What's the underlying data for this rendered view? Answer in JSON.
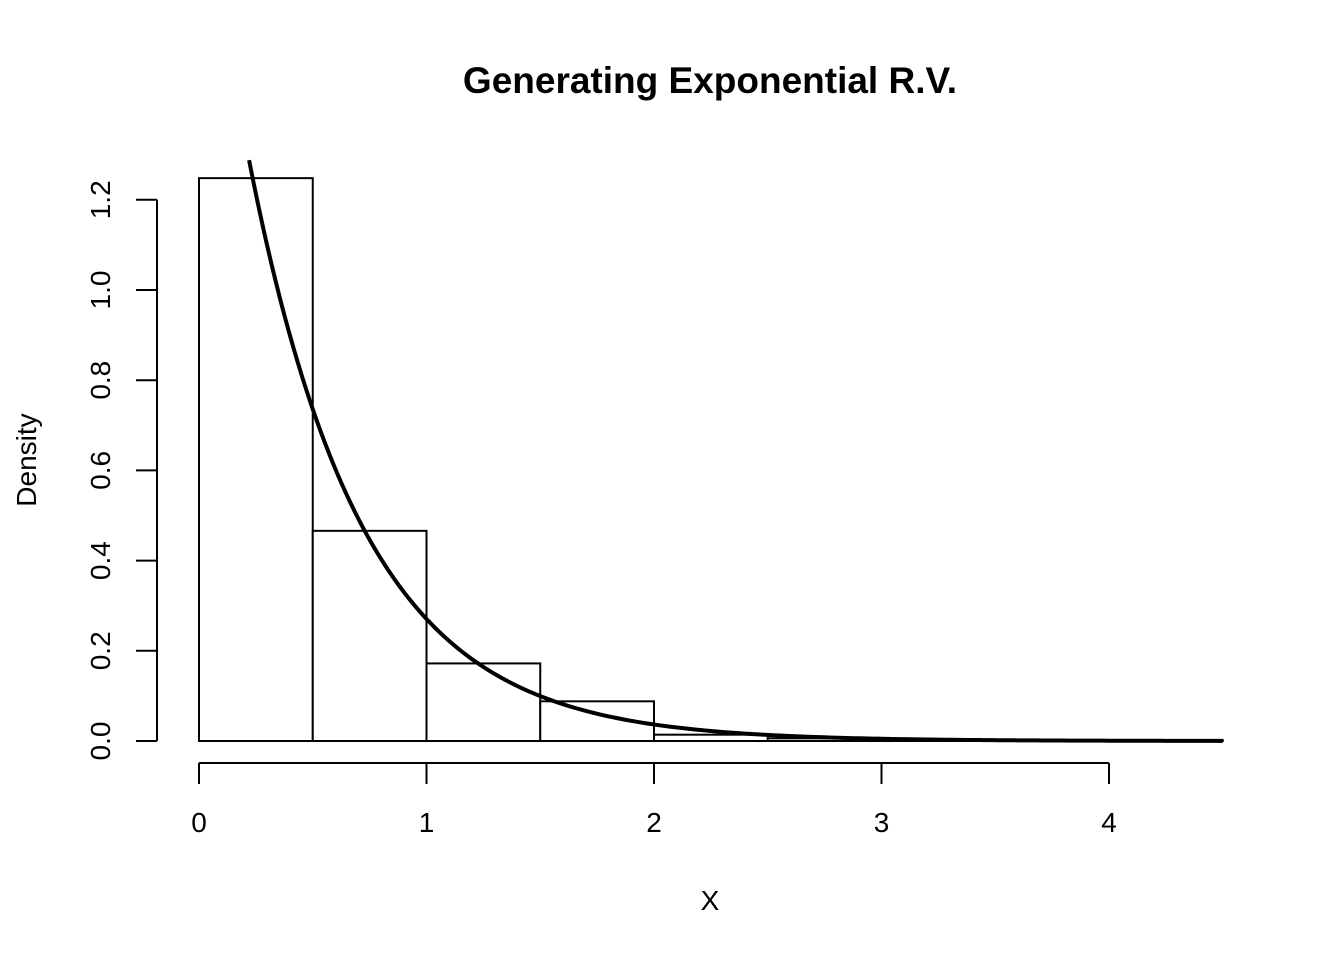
{
  "chart_data": {
    "type": "bar",
    "title": "Generating Exponential R.V.",
    "xlabel": "X",
    "ylabel": "Density",
    "xlim": [
      0,
      4.5
    ],
    "ylim": [
      0,
      1.25
    ],
    "x_ticks": [
      0,
      1,
      2,
      3,
      4
    ],
    "x_tick_labels": [
      "0",
      "1",
      "2",
      "3",
      "4"
    ],
    "y_ticks": [
      0,
      0.2,
      0.4,
      0.6,
      0.8,
      1.0,
      1.2
    ],
    "y_tick_labels": [
      "0.0",
      "0.2",
      "0.4",
      "0.6",
      "0.8",
      "1.0",
      "1.2"
    ],
    "grid": false,
    "legend": "none",
    "histogram": {
      "bin_edges": [
        0,
        0.5,
        1.0,
        1.5,
        2.0,
        2.5,
        3.0,
        3.5,
        4.0,
        4.5
      ],
      "density": [
        1.248,
        0.466,
        0.172,
        0.088,
        0.014,
        0.006,
        0.002,
        0.0,
        0.002
      ]
    },
    "curve": {
      "type": "exponential-density",
      "rate": 2,
      "x_range": [
        0.22,
        4.5
      ]
    },
    "colors": {
      "bar_fill": "#ffffff",
      "bar_stroke": "#000000",
      "curve": "#000000"
    }
  }
}
